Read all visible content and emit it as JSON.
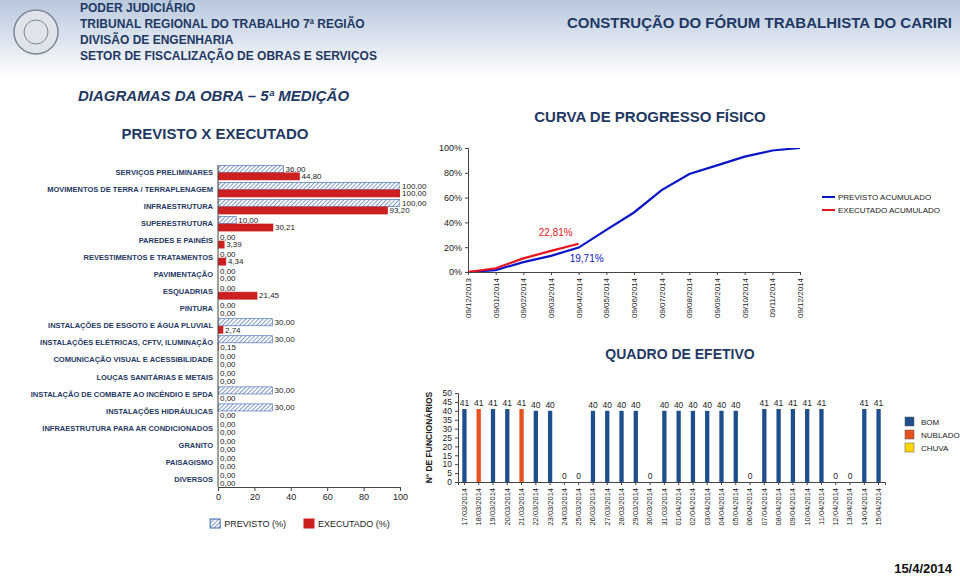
{
  "header": {
    "lines": [
      "PODER JUDICIÁRIO",
      "TRIBUNAL REGIONAL DO TRABALHO 7ª REGIÃO",
      "DIVISÃO DE ENGENHARIA",
      "SETOR DE FISCALIZAÇÃO DE OBRAS E SERVIÇOS"
    ],
    "project": "CONSTRUÇÃO DO FÓRUM TRABALHISTA DO CARIRI",
    "page_title": "DIAGRAMAS DA OBRA – 5ª MEDIÇÃO",
    "date": "15/4/2014"
  },
  "chart_data": [
    {
      "type": "bar",
      "orientation": "horizontal",
      "title": "PREVISTO X EXECUTADO",
      "categories": [
        "SERVIÇOS PRELIMINARES",
        "MOVIMENTOS DE TERRA / TERRAPLENAGEM",
        "INFRAESTRUTURA",
        "SUPERESTRUTURA",
        "PAREDES E PAINÉIS",
        "REVESTIMENTOS E TRATAMENTOS",
        "PAVIMENTAÇÃO",
        "ESQUADRIAS",
        "PINTURA",
        "INSTALAÇÕES DE ESGOTO E ÁGUA PLUVIAL",
        "INSTALAÇÕES ELÉTRICAS, CFTV, ILUMINAÇÃO",
        "COMUNICAÇÃO VISUAL E ACESSIBILIDADE",
        "LOUÇAS SANITÁRIAS E METAIS",
        "INSTALAÇÃO DE COMBATE AO INCÊNDIO E SPDA",
        "INSTALAÇÕES HIDRÁULICAS",
        "INFRAESTRUTURA PARA AR CONDICIONADOS",
        "GRANITO",
        "PAISAGISMO",
        "DIVERSOS"
      ],
      "series": [
        {
          "name": "PREVISTO (%)",
          "color": "#3a63b0",
          "values": [
            36,
            100,
            100,
            10,
            0,
            0,
            0,
            0,
            0,
            30,
            30,
            0,
            0,
            30,
            30,
            0,
            0,
            0,
            0
          ],
          "value_labels": [
            "36,00",
            "100,00",
            "100,00",
            "10,00",
            "0,00",
            "0,00",
            "0,00",
            "0,00",
            "0,00",
            "30,00",
            "30,00",
            "0,00",
            "0,00",
            "30,00",
            "30,00",
            "0,00",
            "0,00",
            "0,00",
            "0,00"
          ]
        },
        {
          "name": "EXECUTADO (%)",
          "color": "#cc1f1f",
          "values": [
            44.8,
            100,
            93.2,
            30.21,
            3.39,
            4.34,
            0,
            21.45,
            0,
            2.74,
            0.15,
            0,
            0,
            0,
            0,
            0,
            0,
            0,
            0
          ],
          "value_labels": [
            "44,80",
            "100,00",
            "93,20",
            "30,21",
            "3,39",
            "4,34",
            "0,00",
            "21,45",
            "0,00",
            "2,74",
            "0,15",
            "0,00",
            "0,00",
            "0,00",
            "0,00",
            "0,00",
            "0,00",
            "0,00",
            "0,00"
          ]
        }
      ],
      "xlim": [
        0,
        100
      ],
      "xticks": [
        0,
        20,
        40,
        60,
        80,
        100
      ],
      "data_labels": true,
      "legend": "bottom"
    },
    {
      "type": "line",
      "title": "CURVA DE PROGRESSO FÍSICO",
      "categories": [
        "09/12/2013",
        "09/01/2014",
        "09/02/2014",
        "09/03/2014",
        "09/04/2014",
        "09/05/2014",
        "09/06/2014",
        "09/07/2014",
        "09/08/2014",
        "09/09/2014",
        "09/10/2014",
        "09/11/2014",
        "09/12/2014"
      ],
      "series": [
        {
          "name": "PREVISTO ACUMULADO",
          "color": "#0a14c8",
          "values": [
            0,
            1.5,
            8,
            13,
            19.71,
            34,
            48,
            66,
            79,
            86,
            93,
            98,
            100
          ],
          "value_labels": [
            null,
            null,
            null,
            null,
            "19,71%",
            null,
            null,
            null,
            null,
            null,
            null,
            null,
            null
          ]
        },
        {
          "name": "EXECUTADO ACUMULADO",
          "color": "#e8141e",
          "values": [
            0,
            3,
            11,
            17,
            22.81,
            null,
            null,
            null,
            null,
            null,
            null,
            null,
            null
          ],
          "value_labels": [
            null,
            null,
            null,
            null,
            "22,81%",
            null,
            null,
            null,
            null,
            null,
            null,
            null,
            null
          ]
        }
      ],
      "ylim": [
        0,
        100
      ],
      "yticks": [
        {
          "value": 0,
          "label": "0%"
        },
        {
          "value": 20,
          "label": "20%"
        },
        {
          "value": 40,
          "label": "40%"
        },
        {
          "value": 60,
          "label": "60%"
        },
        {
          "value": 80,
          "label": "80%"
        },
        {
          "value": 100,
          "label": "100%"
        }
      ],
      "legend": "right"
    },
    {
      "type": "bar",
      "title": "QUADRO DE EFETIVO",
      "y_label": "Nº DE FUNCIONÁRIOS",
      "categories": [
        "17/03/2014",
        "18/03/2014",
        "19/03/2014",
        "20/03/2014",
        "21/03/2014",
        "22/03/2014",
        "23/03/2014",
        "24/03/2014",
        "25/03/2014",
        "26/03/2014",
        "27/03/2014",
        "28/03/2014",
        "29/03/2014",
        "30/03/2014",
        "31/03/2014",
        "01/04/2014",
        "02/04/2014",
        "03/04/2014",
        "04/04/2014",
        "05/04/2014",
        "06/04/2014",
        "07/04/2014",
        "08/04/2014",
        "09/04/2014",
        "10/04/2014",
        "11/04/2014",
        "12/04/2014",
        "13/04/2014",
        "14/04/2014",
        "15/04/2014"
      ],
      "series": [
        {
          "name": "BOM",
          "color": "#1f4e8c",
          "values": [
            41,
            null,
            41,
            41,
            null,
            40,
            40,
            0,
            0,
            40,
            40,
            40,
            40,
            0,
            40,
            40,
            40,
            40,
            40,
            40,
            0,
            41,
            41,
            41,
            41,
            41,
            0,
            0,
            41,
            41
          ]
        },
        {
          "name": "NUBLADO",
          "color": "#e8521e",
          "values": [
            null,
            41,
            null,
            null,
            41,
            null,
            null,
            null,
            null,
            null,
            null,
            null,
            null,
            null,
            null,
            null,
            null,
            null,
            null,
            null,
            null,
            null,
            null,
            null,
            null,
            null,
            null,
            null,
            null,
            null
          ]
        },
        {
          "name": "CHUVA",
          "color": "#ffd800",
          "values": [
            null,
            null,
            null,
            null,
            null,
            null,
            null,
            null,
            null,
            null,
            null,
            null,
            null,
            null,
            null,
            null,
            null,
            null,
            null,
            null,
            null,
            null,
            null,
            null,
            null,
            null,
            null,
            null,
            null,
            null
          ]
        }
      ],
      "ylim": [
        0,
        50
      ],
      "yticks": [
        0,
        5,
        10,
        15,
        20,
        25,
        30,
        35,
        40,
        45,
        50
      ],
      "stacked": true,
      "data_labels": true,
      "legend": "right"
    }
  ]
}
